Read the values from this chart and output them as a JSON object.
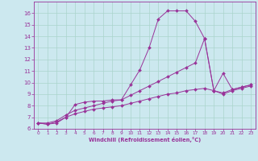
{
  "xlabel": "Windchill (Refroidissement éolien,°C)",
  "background_color": "#cce8ef",
  "grid_color": "#aad4cc",
  "line_color": "#993399",
  "xlim": [
    -0.5,
    23.5
  ],
  "ylim": [
    6,
    17
  ],
  "xticks": [
    0,
    1,
    2,
    3,
    4,
    5,
    6,
    7,
    8,
    9,
    10,
    11,
    12,
    13,
    14,
    15,
    16,
    17,
    18,
    19,
    20,
    21,
    22,
    23
  ],
  "yticks": [
    6,
    7,
    8,
    9,
    10,
    11,
    12,
    13,
    14,
    15,
    16
  ],
  "series": [
    {
      "x": [
        0,
        1,
        2,
        3,
        4,
        5,
        6,
        7,
        8,
        9,
        10,
        11,
        12,
        13,
        14,
        15,
        16,
        17,
        18
      ],
      "y": [
        6.5,
        6.4,
        6.5,
        7.0,
        8.1,
        8.3,
        8.4,
        8.4,
        8.5,
        8.5,
        9.8,
        11.1,
        13.0,
        15.5,
        16.2,
        16.2,
        16.2,
        15.3,
        13.8
      ]
    },
    {
      "x": [
        18,
        19,
        20,
        21,
        22,
        23
      ],
      "y": [
        13.8,
        9.3,
        10.8,
        9.4,
        9.6,
        9.8
      ]
    },
    {
      "x": [
        0,
        1,
        2,
        3,
        4,
        5,
        6,
        7,
        8,
        9,
        10,
        11,
        12,
        13,
        14,
        15,
        16,
        17,
        18,
        19,
        20,
        21,
        22,
        23
      ],
      "y": [
        6.5,
        6.5,
        6.7,
        7.2,
        7.6,
        7.8,
        8.0,
        8.2,
        8.4,
        8.5,
        8.9,
        9.3,
        9.7,
        10.1,
        10.5,
        10.9,
        11.3,
        11.7,
        13.8,
        9.3,
        9.1,
        9.4,
        9.6,
        9.8
      ]
    },
    {
      "x": [
        0,
        1,
        2,
        3,
        4,
        5,
        6,
        7,
        8,
        9,
        10,
        11,
        12,
        13,
        14,
        15,
        16,
        17,
        18,
        19,
        20,
        21,
        22,
        23
      ],
      "y": [
        6.5,
        6.4,
        6.6,
        7.0,
        7.3,
        7.5,
        7.7,
        7.8,
        7.9,
        8.0,
        8.2,
        8.4,
        8.6,
        8.8,
        9.0,
        9.1,
        9.3,
        9.4,
        9.5,
        9.3,
        9.0,
        9.3,
        9.5,
        9.7
      ]
    }
  ]
}
